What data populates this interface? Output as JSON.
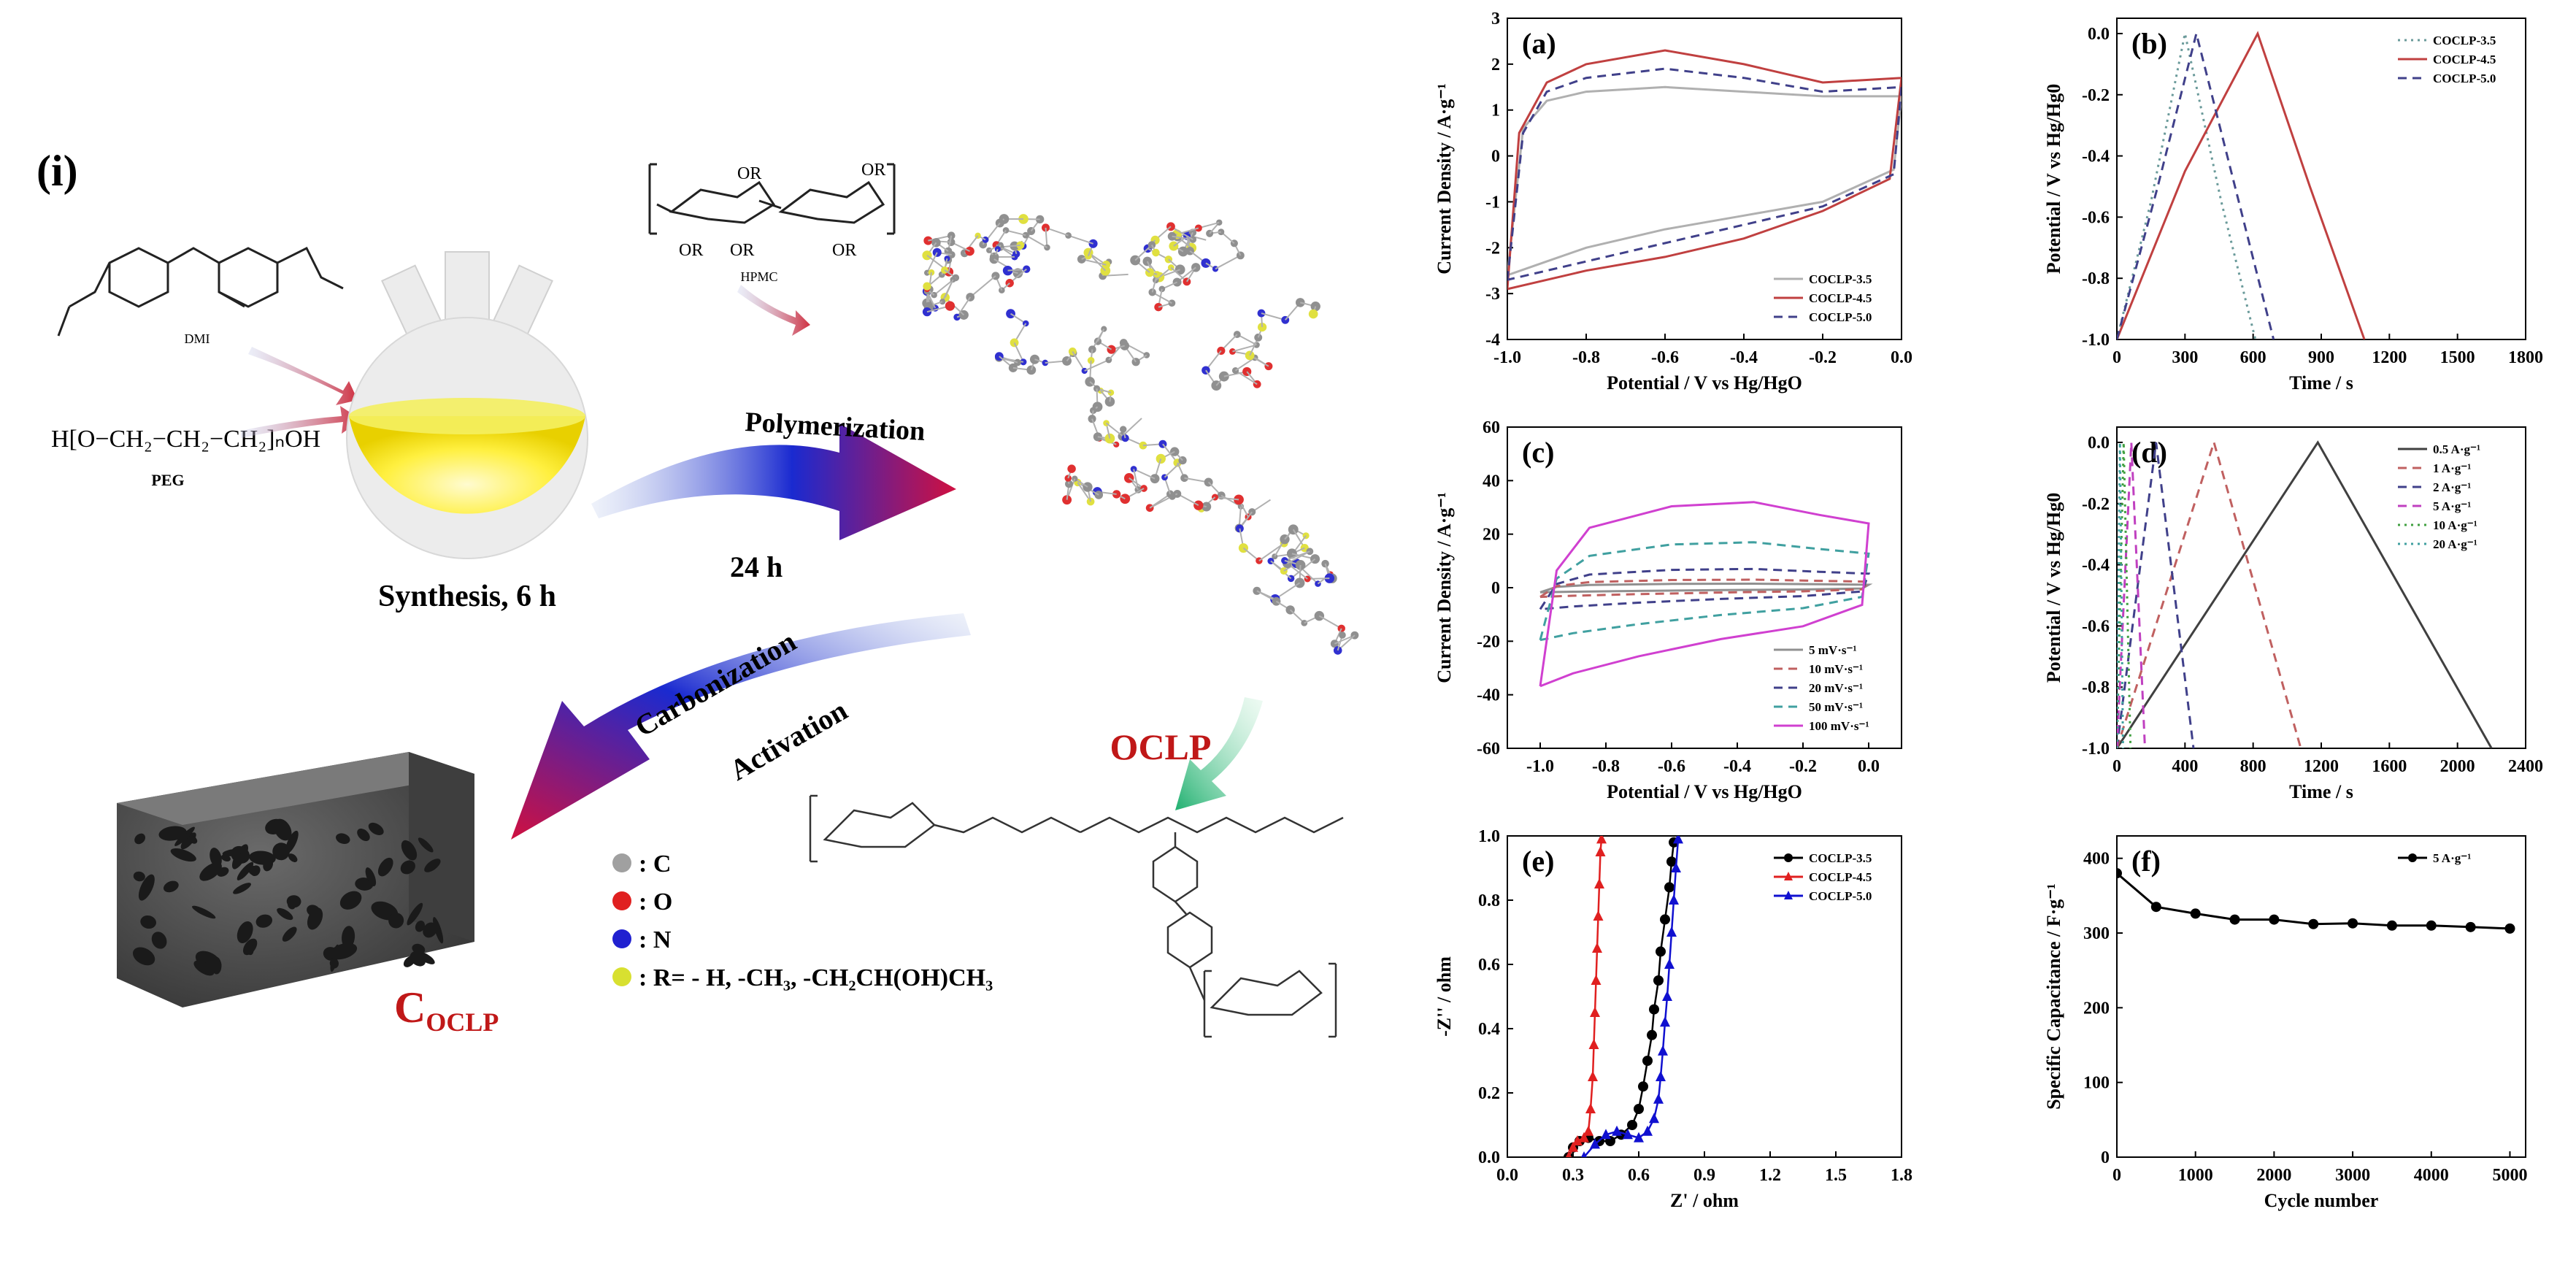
{
  "scheme": {
    "label": "(i)",
    "dmi_label": "DMI",
    "peg_formula": "H[O−CH₂−CH₂−CH₂]ₙOH",
    "peg_label": "PEG",
    "hpmc_label": "HPMC",
    "flask_caption": "Synthesis, 6 h",
    "arrow1_top": "Polymerization",
    "arrow1_bottom": "24 h",
    "oclp_label": "OCLP",
    "arrow2_top": "Carbonization",
    "arrow2_bottom": "Activation",
    "coclp_label": "C",
    "coclp_sub": "OCLP",
    "legend": [
      {
        "symbol": "C",
        "text": ": C",
        "color": "#a0a0a0"
      },
      {
        "symbol": "O",
        "text": ": O",
        "color": "#e02020"
      },
      {
        "symbol": "N",
        "text": ": N",
        "color": "#2020d0"
      },
      {
        "symbol": "R",
        "text": ": R= - H, -CH₃, -CH₂CH(OH)CH₃",
        "color": "#d8e030"
      }
    ]
  },
  "chart_data": [
    {
      "panel": "(a)",
      "type": "line",
      "xlabel": "Potential / V vs Hg/HgO",
      "ylabel": "Current Density / A·g⁻¹",
      "xlim": [
        -1.0,
        0.0
      ],
      "ylim": [
        -4,
        3
      ],
      "xticks": [
        "-1.0",
        "-0.8",
        "-0.6",
        "-0.4",
        "-0.2",
        "0.0"
      ],
      "yticks": [
        "-4",
        "-3",
        "-2",
        "-1",
        "0",
        "1",
        "2",
        "3"
      ],
      "legend_position": "bottom-right",
      "series": [
        {
          "name": "COCLP-3.5",
          "color": "#b0b0b0",
          "dash": "solid",
          "upper": [
            [
              -1.0,
              -2.6
            ],
            [
              -0.96,
              0.6
            ],
            [
              -0.9,
              1.2
            ],
            [
              -0.8,
              1.4
            ],
            [
              -0.6,
              1.5
            ],
            [
              -0.4,
              1.4
            ],
            [
              -0.2,
              1.3
            ],
            [
              0.0,
              1.3
            ]
          ],
          "lower": [
            [
              0.0,
              1.3
            ],
            [
              -0.02,
              -0.3
            ],
            [
              -0.2,
              -1.0
            ],
            [
              -0.4,
              -1.3
            ],
            [
              -0.6,
              -1.6
            ],
            [
              -0.8,
              -2.0
            ],
            [
              -0.9,
              -2.3
            ],
            [
              -1.0,
              -2.6
            ]
          ]
        },
        {
          "name": "COCLP-4.5",
          "color": "#c04040",
          "dash": "solid",
          "upper": [
            [
              -1.0,
              -2.9
            ],
            [
              -0.97,
              0.5
            ],
            [
              -0.9,
              1.6
            ],
            [
              -0.8,
              2.0
            ],
            [
              -0.6,
              2.3
            ],
            [
              -0.4,
              2.0
            ],
            [
              -0.2,
              1.6
            ],
            [
              0.0,
              1.7
            ]
          ],
          "lower": [
            [
              0.0,
              1.7
            ],
            [
              -0.03,
              -0.5
            ],
            [
              -0.2,
              -1.2
            ],
            [
              -0.4,
              -1.8
            ],
            [
              -0.6,
              -2.2
            ],
            [
              -0.8,
              -2.5
            ],
            [
              -0.9,
              -2.7
            ],
            [
              -1.0,
              -2.9
            ]
          ]
        },
        {
          "name": "COCLP-5.0",
          "color": "#40408a",
          "dash": "dashed",
          "upper": [
            [
              -1.0,
              -2.7
            ],
            [
              -0.96,
              0.5
            ],
            [
              -0.9,
              1.4
            ],
            [
              -0.8,
              1.7
            ],
            [
              -0.6,
              1.9
            ],
            [
              -0.4,
              1.7
            ],
            [
              -0.2,
              1.4
            ],
            [
              0.0,
              1.5
            ]
          ],
          "lower": [
            [
              0.0,
              1.5
            ],
            [
              -0.02,
              -0.4
            ],
            [
              -0.2,
              -1.1
            ],
            [
              -0.4,
              -1.5
            ],
            [
              -0.6,
              -1.9
            ],
            [
              -0.8,
              -2.3
            ],
            [
              -0.9,
              -2.5
            ],
            [
              -1.0,
              -2.7
            ]
          ]
        }
      ]
    },
    {
      "panel": "(b)",
      "type": "line",
      "xlabel": "Time / s",
      "ylabel": "Potential / V vs Hg/Hg0",
      "xlim": [
        0,
        1800
      ],
      "ylim": [
        -1.0,
        0.05
      ],
      "xticks": [
        "0",
        "300",
        "600",
        "900",
        "1200",
        "1500",
        "1800"
      ],
      "yticks": [
        "-1.0",
        "-0.8",
        "-0.6",
        "-0.4",
        "-0.2",
        "0.0"
      ],
      "legend_position": "top-right",
      "series": [
        {
          "name": "COCLP-3.5",
          "color": "#6a9a9a",
          "dash": "dotted",
          "points": [
            [
              0,
              -1.0
            ],
            [
              150,
              -0.55
            ],
            [
              300,
              0.0
            ],
            [
              460,
              -0.55
            ],
            [
              610,
              -1.0
            ]
          ]
        },
        {
          "name": "COCLP-4.5",
          "color": "#c04040",
          "dash": "solid",
          "points": [
            [
              0,
              -1.0
            ],
            [
              300,
              -0.45
            ],
            [
              620,
              0.0
            ],
            [
              850,
              -0.5
            ],
            [
              1090,
              -1.0
            ]
          ]
        },
        {
          "name": "COCLP-5.0",
          "color": "#40408a",
          "dash": "dashed",
          "points": [
            [
              0,
              -1.0
            ],
            [
              180,
              -0.5
            ],
            [
              350,
              0.0
            ],
            [
              520,
              -0.5
            ],
            [
              690,
              -1.0
            ]
          ]
        }
      ]
    },
    {
      "panel": "(c)",
      "type": "line",
      "xlabel": "Potential / V vs Hg/HgO",
      "ylabel": "Current Density / A·g⁻¹",
      "xlim": [
        -1.1,
        0.1
      ],
      "ylim": [
        -60,
        60
      ],
      "xticks": [
        "-1.0",
        "-0.8",
        "-0.6",
        "-0.4",
        "-0.2",
        "0.0"
      ],
      "yticks": [
        "-60",
        "-40",
        "-20",
        "0",
        "20",
        "40",
        "60"
      ],
      "legend_position": "bottom-right",
      "series": [
        {
          "name": "5 mV·s⁻¹",
          "color": "#909090",
          "dash": "solid",
          "amp": 1.5
        },
        {
          "name": "10 mV·s⁻¹",
          "color": "#c06060",
          "dash": "dashed",
          "amp": 3
        },
        {
          "name": "20 mV·s⁻¹",
          "color": "#40408a",
          "dash": "dashed",
          "amp": 7
        },
        {
          "name": "50 mV·s⁻¹",
          "color": "#40a0a0",
          "dash": "dashed",
          "amp": 17
        },
        {
          "name": "100 mV·s⁻¹",
          "color": "#d040d0",
          "dash": "solid",
          "amp": 32
        }
      ]
    },
    {
      "panel": "(d)",
      "type": "line",
      "xlabel": "Time / s",
      "ylabel": "Potential / V vs Hg/Hg0",
      "xlim": [
        0,
        2400
      ],
      "ylim": [
        -1.0,
        0.05
      ],
      "xticks": [
        "0",
        "400",
        "800",
        "1200",
        "1600",
        "2000",
        "2400"
      ],
      "yticks": [
        "-1.0",
        "-0.8",
        "-0.6",
        "-0.4",
        "-0.2",
        "0.0"
      ],
      "legend_position": "top-right",
      "series": [
        {
          "name": "0.5 A·g⁻¹",
          "color": "#404040",
          "dash": "solid",
          "points": [
            [
              0,
              -1.0
            ],
            [
              1180,
              0.0
            ],
            [
              2200,
              -1.0
            ]
          ]
        },
        {
          "name": "1 A·g⁻¹",
          "color": "#c06060",
          "dash": "dashed",
          "points": [
            [
              0,
              -1.0
            ],
            [
              570,
              0.0
            ],
            [
              1080,
              -1.0
            ]
          ]
        },
        {
          "name": "2 A·g⁻¹",
          "color": "#40408a",
          "dash": "dashed",
          "points": [
            [
              0,
              -1.0
            ],
            [
              230,
              0.0
            ],
            [
              450,
              -1.0
            ]
          ]
        },
        {
          "name": "5 A·g⁻¹",
          "color": "#c040c0",
          "dash": "dashed",
          "points": [
            [
              0,
              -1.0
            ],
            [
              85,
              0.0
            ],
            [
              165,
              -1.0
            ]
          ]
        },
        {
          "name": "10 A·g⁻¹",
          "color": "#40a040",
          "dash": "dotted",
          "points": [
            [
              0,
              -1.0
            ],
            [
              40,
              0.0
            ],
            [
              80,
              -1.0
            ]
          ]
        },
        {
          "name": "20 A·g⁻¹",
          "color": "#40a0a0",
          "dash": "dotted",
          "points": [
            [
              0,
              -1.0
            ],
            [
              18,
              0.0
            ],
            [
              36,
              -1.0
            ]
          ]
        }
      ]
    },
    {
      "panel": "(e)",
      "type": "scatter",
      "xlabel": "Z' / ohm",
      "ylabel": "-Z'' / ohm",
      "xlim": [
        0.0,
        1.8
      ],
      "ylim": [
        0.0,
        1.0
      ],
      "xticks": [
        "0.0",
        "0.3",
        "0.6",
        "0.9",
        "1.2",
        "1.5",
        "1.8"
      ],
      "yticks": [
        "0.0",
        "0.2",
        "0.4",
        "0.6",
        "0.8",
        "1.0"
      ],
      "legend_position": "top-right",
      "series": [
        {
          "name": "COCLP-3.5",
          "color": "#000000",
          "marker": "circle",
          "points": [
            [
              0.28,
              0.0
            ],
            [
              0.3,
              0.03
            ],
            [
              0.33,
              0.05
            ],
            [
              0.37,
              0.06
            ],
            [
              0.42,
              0.05
            ],
            [
              0.47,
              0.05
            ],
            [
              0.52,
              0.07
            ],
            [
              0.57,
              0.1
            ],
            [
              0.6,
              0.15
            ],
            [
              0.62,
              0.22
            ],
            [
              0.64,
              0.3
            ],
            [
              0.66,
              0.38
            ],
            [
              0.67,
              0.46
            ],
            [
              0.69,
              0.55
            ],
            [
              0.7,
              0.64
            ],
            [
              0.72,
              0.74
            ],
            [
              0.74,
              0.84
            ],
            [
              0.75,
              0.92
            ],
            [
              0.76,
              0.98
            ]
          ]
        },
        {
          "name": "COCLP-4.5",
          "color": "#e02020",
          "marker": "triangle",
          "points": [
            [
              0.28,
              0.0
            ],
            [
              0.3,
              0.03
            ],
            [
              0.32,
              0.05
            ],
            [
              0.35,
              0.06
            ],
            [
              0.37,
              0.08
            ],
            [
              0.38,
              0.15
            ],
            [
              0.39,
              0.25
            ],
            [
              0.395,
              0.35
            ],
            [
              0.4,
              0.45
            ],
            [
              0.405,
              0.55
            ],
            [
              0.41,
              0.65
            ],
            [
              0.415,
              0.75
            ],
            [
              0.42,
              0.85
            ],
            [
              0.425,
              0.95
            ],
            [
              0.43,
              0.99
            ]
          ]
        },
        {
          "name": "COCLP-5.0",
          "color": "#1010d0",
          "marker": "triangle",
          "points": [
            [
              0.35,
              0.0
            ],
            [
              0.4,
              0.04
            ],
            [
              0.45,
              0.07
            ],
            [
              0.5,
              0.08
            ],
            [
              0.55,
              0.07
            ],
            [
              0.6,
              0.06
            ],
            [
              0.64,
              0.08
            ],
            [
              0.67,
              0.12
            ],
            [
              0.69,
              0.18
            ],
            [
              0.7,
              0.25
            ],
            [
              0.71,
              0.33
            ],
            [
              0.72,
              0.42
            ],
            [
              0.73,
              0.5
            ],
            [
              0.74,
              0.6
            ],
            [
              0.75,
              0.7
            ],
            [
              0.76,
              0.8
            ],
            [
              0.77,
              0.9
            ],
            [
              0.78,
              0.99
            ]
          ]
        }
      ]
    },
    {
      "panel": "(f)",
      "type": "line",
      "xlabel": "Cycle number",
      "ylabel": "Specific Capacitance / F·g⁻¹",
      "xlim": [
        0,
        5200
      ],
      "ylim": [
        0,
        430
      ],
      "xticks": [
        "0",
        "1000",
        "2000",
        "3000",
        "4000",
        "5000"
      ],
      "yticks": [
        "0",
        "100",
        "200",
        "300",
        "400"
      ],
      "legend_position": "top-right",
      "series": [
        {
          "name": "5 A·g⁻¹",
          "color": "#000000",
          "marker": "circle",
          "points": [
            [
              0,
              380
            ],
            [
              500,
              335
            ],
            [
              1000,
              326
            ],
            [
              1500,
              318
            ],
            [
              2000,
              318
            ],
            [
              2500,
              312
            ],
            [
              3000,
              313
            ],
            [
              3500,
              310
            ],
            [
              4000,
              310
            ],
            [
              4500,
              308
            ],
            [
              5000,
              306
            ]
          ]
        }
      ]
    }
  ]
}
